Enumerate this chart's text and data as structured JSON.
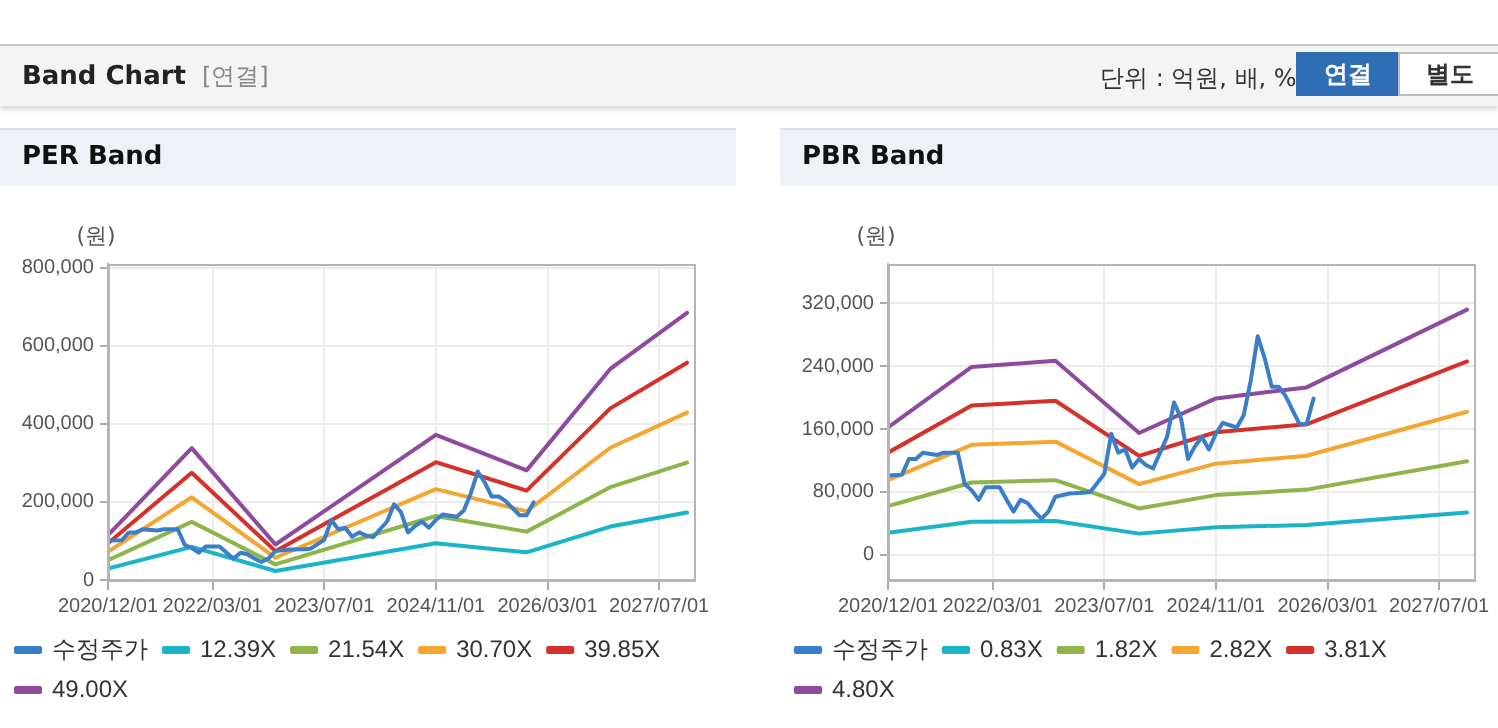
{
  "chart_data": [
    {
      "type": "other",
      "title": "Band Chart",
      "annotations": [
        "[연결]",
        "단위 : 억원, 배, %",
        "연결",
        "별도"
      ]
    },
    {
      "type": "line",
      "title": "PER Band",
      "ylabel": "(원)",
      "xlim": [
        "2020-12-01",
        "2027-12-01"
      ],
      "ylim": [
        0,
        810000
      ],
      "xticks": [
        {
          "value": "2020-12-01",
          "label": "2020/12/01"
        },
        {
          "value": "2022-03-01",
          "label": "2022/03/01"
        },
        {
          "value": "2023-07-01",
          "label": "2023/07/01"
        },
        {
          "value": "2024-11-01",
          "label": "2024/11/01"
        },
        {
          "value": "2026-03-01",
          "label": "2026/03/01"
        },
        {
          "value": "2027-07-01",
          "label": "2027/07/01"
        }
      ],
      "yticks": [
        0,
        {
          "value": 200000,
          "label": "200,000"
        },
        {
          "value": 400000,
          "label": "400,000"
        },
        {
          "value": 600000,
          "label": "600,000"
        },
        {
          "value": 800000,
          "label": "800,000"
        }
      ],
      "grid": true,
      "legend": "bottom left",
      "marker": "none",
      "line_style": "solid",
      "series": [
        {
          "name": "수정주가",
          "color": "#3a7dc9",
          "x": [
            "2020-12",
            "2021-02",
            "2021-03",
            "2021-04",
            "2021-05",
            "2021-07",
            "2021-08",
            "2021-10",
            "2021-11",
            "2021-12",
            "2022-01",
            "2022-02",
            "2022-04",
            "2022-05",
            "2022-06",
            "2022-07",
            "2022-08",
            "2022-09",
            "2022-10",
            "2022-11",
            "2022-12",
            "2023-02",
            "2023-04",
            "2023-05",
            "2023-07",
            "2023-08",
            "2023-09",
            "2023-10",
            "2023-11",
            "2023-12",
            "2024-01",
            "2024-02",
            "2024-03",
            "2024-04",
            "2024-05",
            "2024-06",
            "2024-07",
            "2024-08",
            "2024-09",
            "2024-10",
            "2024-11",
            "2024-12",
            "2025-02",
            "2025-03",
            "2025-04",
            "2025-05",
            "2025-06",
            "2025-07",
            "2025-08",
            "2025-09",
            "2025-11",
            "2025-12",
            "2026-01"
          ],
          "values": [
            101000,
            102000,
            122000,
            122000,
            130000,
            127000,
            130000,
            130000,
            90000,
            82000,
            70000,
            86000,
            86000,
            70000,
            55000,
            70000,
            66000,
            55000,
            46000,
            55000,
            74000,
            78000,
            79000,
            80000,
            103000,
            154000,
            130000,
            134000,
            111000,
            122000,
            114000,
            110000,
            130000,
            150000,
            194000,
            174000,
            122000,
            138000,
            150000,
            134000,
            154000,
            168000,
            162000,
            178000,
            222000,
            278000,
            250000,
            214000,
            214000,
            202000,
            166000,
            166000,
            199000
          ]
        },
        {
          "name": "12.39X",
          "color": "#1bb3c8",
          "x": [
            "2020-12",
            "2021-12",
            "2022-12",
            "2024-11",
            "2025-12",
            "2026-12",
            "2027-11"
          ],
          "values": [
            29000,
            85000,
            23000,
            94000,
            71000,
            137000,
            173000
          ]
        },
        {
          "name": "21.54X",
          "color": "#8db54a",
          "x": [
            "2020-12",
            "2021-12",
            "2022-12",
            "2024-11",
            "2025-12",
            "2026-12",
            "2027-11"
          ],
          "values": [
            51000,
            149000,
            40000,
            164000,
            124000,
            238000,
            301000
          ]
        },
        {
          "name": "30.70X",
          "color": "#f5a630",
          "x": [
            "2020-12",
            "2021-12",
            "2022-12",
            "2024-11",
            "2025-12",
            "2026-12",
            "2027-11"
          ],
          "values": [
            72000,
            212000,
            57000,
            233000,
            176000,
            339000,
            429000
          ]
        },
        {
          "name": "39.85X",
          "color": "#d6302b",
          "x": [
            "2020-12",
            "2021-12",
            "2022-12",
            "2024-11",
            "2025-12",
            "2026-12",
            "2027-11"
          ],
          "values": [
            94000,
            275000,
            74000,
            302000,
            229000,
            440000,
            557000
          ]
        },
        {
          "name": "49.00X",
          "color": "#8e4a9e",
          "x": [
            "2020-12",
            "2021-12",
            "2022-12",
            "2024-11",
            "2025-12",
            "2026-12",
            "2027-11"
          ],
          "values": [
            115000,
            338000,
            91000,
            372000,
            281000,
            541000,
            685000
          ]
        }
      ]
    },
    {
      "type": "line",
      "title": "PBR Band",
      "ylabel": "(원)",
      "xlim": [
        "2020-12-01",
        "2027-12-01"
      ],
      "ylim": [
        -32000,
        370000
      ],
      "xticks": [
        {
          "value": "2020-12-01",
          "label": "2020/12/01"
        },
        {
          "value": "2022-03-01",
          "label": "2022/03/01"
        },
        {
          "value": "2023-07-01",
          "label": "2023/07/01"
        },
        {
          "value": "2024-11-01",
          "label": "2024/11/01"
        },
        {
          "value": "2026-03-01",
          "label": "2026/03/01"
        },
        {
          "value": "2027-07-01",
          "label": "2027/07/01"
        }
      ],
      "yticks": [
        0,
        {
          "value": 80000,
          "label": "80,000"
        },
        {
          "value": 160000,
          "label": "160,000"
        },
        {
          "value": 240000,
          "label": "240,000"
        },
        {
          "value": 320000,
          "label": "320,000"
        }
      ],
      "grid": true,
      "legend": "bottom left",
      "marker": "none",
      "line_style": "solid",
      "series": [
        {
          "name": "수정주가",
          "color": "#3a7dc9",
          "x": [
            "2020-12",
            "2021-02",
            "2021-03",
            "2021-04",
            "2021-05",
            "2021-07",
            "2021-08",
            "2021-10",
            "2021-11",
            "2021-12",
            "2022-01",
            "2022-02",
            "2022-04",
            "2022-05",
            "2022-06",
            "2022-07",
            "2022-08",
            "2022-09",
            "2022-10",
            "2022-11",
            "2022-12",
            "2023-02",
            "2023-04",
            "2023-05",
            "2023-07",
            "2023-08",
            "2023-09",
            "2023-10",
            "2023-11",
            "2023-12",
            "2024-01",
            "2024-02",
            "2024-03",
            "2024-04",
            "2024-05",
            "2024-06",
            "2024-07",
            "2024-08",
            "2024-09",
            "2024-10",
            "2024-11",
            "2024-12",
            "2025-02",
            "2025-03",
            "2025-04",
            "2025-05",
            "2025-06",
            "2025-07",
            "2025-08",
            "2025-09",
            "2025-11",
            "2025-12",
            "2026-01"
          ],
          "values": [
            101000,
            102000,
            122000,
            122000,
            130000,
            127000,
            130000,
            130000,
            90000,
            82000,
            70000,
            86000,
            86000,
            70000,
            55000,
            70000,
            66000,
            55000,
            46000,
            55000,
            74000,
            78000,
            79000,
            80000,
            103000,
            154000,
            130000,
            134000,
            111000,
            122000,
            114000,
            110000,
            130000,
            150000,
            194000,
            174000,
            122000,
            138000,
            150000,
            134000,
            154000,
            168000,
            162000,
            178000,
            222000,
            278000,
            250000,
            214000,
            214000,
            202000,
            166000,
            166000,
            199000
          ]
        },
        {
          "name": "0.83X",
          "color": "#1bb3c8",
          "x": [
            "2020-12",
            "2021-12",
            "2022-12",
            "2023-12",
            "2024-11",
            "2025-12",
            "2027-11"
          ],
          "values": [
            28000,
            42000,
            43000,
            27000,
            35000,
            38000,
            54000
          ]
        },
        {
          "name": "1.82X",
          "color": "#8db54a",
          "x": [
            "2020-12",
            "2021-12",
            "2022-12",
            "2023-12",
            "2024-11",
            "2025-12",
            "2027-11"
          ],
          "values": [
            62000,
            92000,
            95000,
            59000,
            76000,
            83000,
            119000
          ]
        },
        {
          "name": "2.82X",
          "color": "#f5a630",
          "x": [
            "2020-12",
            "2021-12",
            "2022-12",
            "2023-12",
            "2024-11",
            "2025-12",
            "2027-11"
          ],
          "values": [
            95000,
            140000,
            144000,
            90000,
            116000,
            126000,
            182000
          ]
        },
        {
          "name": "3.81X",
          "color": "#d6302b",
          "x": [
            "2020-12",
            "2021-12",
            "2022-12",
            "2023-12",
            "2024-11",
            "2025-12",
            "2027-11"
          ],
          "values": [
            130000,
            190000,
            196000,
            126000,
            156000,
            166000,
            246000
          ]
        },
        {
          "name": "4.80X",
          "color": "#8e4a9e",
          "x": [
            "2020-12",
            "2021-12",
            "2022-12",
            "2023-12",
            "2024-11",
            "2025-12",
            "2027-11"
          ],
          "values": [
            162000,
            239000,
            247000,
            155000,
            199000,
            213000,
            312000
          ]
        }
      ]
    }
  ]
}
